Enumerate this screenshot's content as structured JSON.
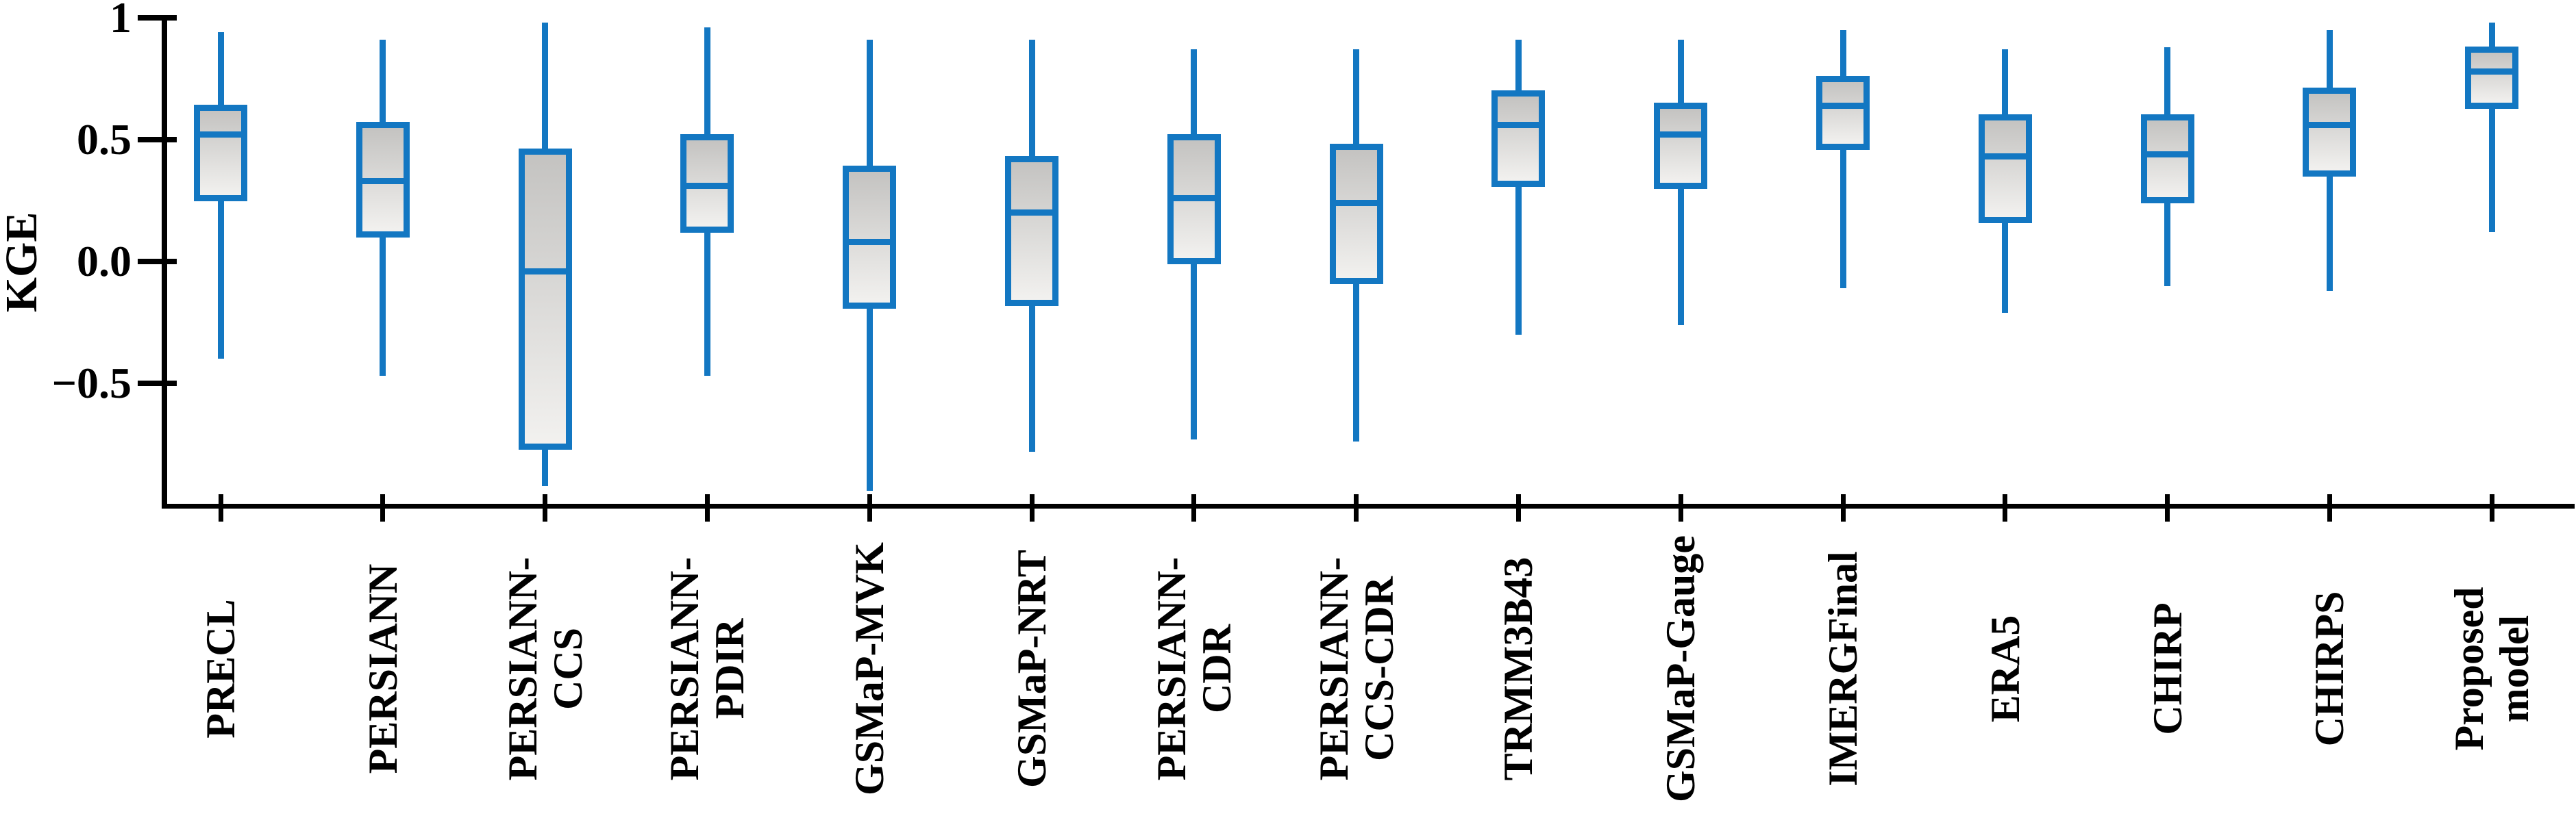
{
  "figure": {
    "background": "#ffffff"
  },
  "chart_data": {
    "type": "boxplot",
    "title": "",
    "xlabel": "",
    "ylabel": "KGE",
    "ylim": [
      -1,
      1
    ],
    "grid": false,
    "legend": "none",
    "yticks": [
      {
        "label": "1",
        "value": 1.0
      },
      {
        "label": "0.5",
        "value": 0.5
      },
      {
        "label": "0.0",
        "value": 0.0
      },
      {
        "label": "−0.5",
        "value": -0.5
      }
    ],
    "categories": [
      "PRECL",
      "PERSIANN",
      "PERSIANN-CCS",
      "PERSIANN-PDIR",
      "GSMaP-MVK",
      "GSMaP-NRT",
      "PERSIANN-CDR",
      "PERSIANN-CCS-CDR",
      "TRMM3B43",
      "GSMaP-Gauge",
      "IMERGFinal",
      "ERA5",
      "CHIRP",
      "CHIRPS",
      "Proposed model"
    ],
    "series": [
      {
        "name": "PRECL",
        "label_lines": [
          "PRECL"
        ],
        "whisker_high": 0.94,
        "q3": 0.63,
        "median": 0.52,
        "q1": 0.26,
        "whisker_low": -0.4
      },
      {
        "name": "PERSIANN",
        "label_lines": [
          "PERSIANN"
        ],
        "whisker_high": 0.91,
        "q3": 0.56,
        "median": 0.33,
        "q1": 0.11,
        "whisker_low": -0.47
      },
      {
        "name": "PERSIANN-CCS",
        "label_lines": [
          "PERSIANN-",
          "CCS"
        ],
        "whisker_high": 0.98,
        "q3": 0.45,
        "median": -0.04,
        "q1": -0.76,
        "whisker_low": -0.92
      },
      {
        "name": "PERSIANN-PDIR",
        "label_lines": [
          "PERSIANN-",
          "PDIR"
        ],
        "whisker_high": 0.96,
        "q3": 0.51,
        "median": 0.31,
        "q1": 0.13,
        "whisker_low": -0.47
      },
      {
        "name": "GSMaP-MVK",
        "label_lines": [
          "GSMaP-MVK"
        ],
        "whisker_high": 0.91,
        "q3": 0.38,
        "median": 0.08,
        "q1": -0.18,
        "whisker_low": -0.94
      },
      {
        "name": "GSMaP-NRT",
        "label_lines": [
          "GSMaP-NRT"
        ],
        "whisker_high": 0.91,
        "q3": 0.42,
        "median": 0.2,
        "q1": -0.17,
        "whisker_low": -0.78
      },
      {
        "name": "PERSIANN-CDR",
        "label_lines": [
          "PERSIANN-",
          "CDR"
        ],
        "whisker_high": 0.87,
        "q3": 0.51,
        "median": 0.26,
        "q1": 0.0,
        "whisker_low": -0.73
      },
      {
        "name": "PERSIANN-CCS-CDR",
        "label_lines": [
          "PERSIANN-",
          "CCS-CDR"
        ],
        "whisker_high": 0.87,
        "q3": 0.47,
        "median": 0.24,
        "q1": -0.08,
        "whisker_low": -0.74
      },
      {
        "name": "TRMM3B43",
        "label_lines": [
          "TRMM3B43"
        ],
        "whisker_high": 0.91,
        "q3": 0.69,
        "median": 0.56,
        "q1": 0.32,
        "whisker_low": -0.3
      },
      {
        "name": "GSMaP-Gauge",
        "label_lines": [
          "GSMaP-Gauge"
        ],
        "whisker_high": 0.91,
        "q3": 0.64,
        "median": 0.52,
        "q1": 0.31,
        "whisker_low": -0.26
      },
      {
        "name": "IMERGFinal",
        "label_lines": [
          "IMERGFinal"
        ],
        "whisker_high": 0.95,
        "q3": 0.75,
        "median": 0.64,
        "q1": 0.47,
        "whisker_low": -0.11
      },
      {
        "name": "ERA5",
        "label_lines": [
          "ERA5"
        ],
        "whisker_high": 0.87,
        "q3": 0.59,
        "median": 0.43,
        "q1": 0.17,
        "whisker_low": -0.21
      },
      {
        "name": "CHIRP",
        "label_lines": [
          "CHIRP"
        ],
        "whisker_high": 0.88,
        "q3": 0.59,
        "median": 0.44,
        "q1": 0.25,
        "whisker_low": -0.1
      },
      {
        "name": "CHIRPS",
        "label_lines": [
          "CHIRPS"
        ],
        "whisker_high": 0.95,
        "q3": 0.7,
        "median": 0.56,
        "q1": 0.36,
        "whisker_low": -0.12
      },
      {
        "name": "Proposed model",
        "label_lines": [
          "Proposed",
          "model"
        ],
        "whisker_high": 0.98,
        "q3": 0.87,
        "median": 0.78,
        "q1": 0.64,
        "whisker_low": 0.12
      }
    ],
    "colors": {
      "box_border": "#1377C2",
      "whisker": "#1377C2",
      "median": "#1377C2",
      "box_fill_top": "#c4c3c1",
      "box_fill_bottom": "#f2f1ef",
      "axis": "#000000",
      "text": "#000000"
    }
  }
}
